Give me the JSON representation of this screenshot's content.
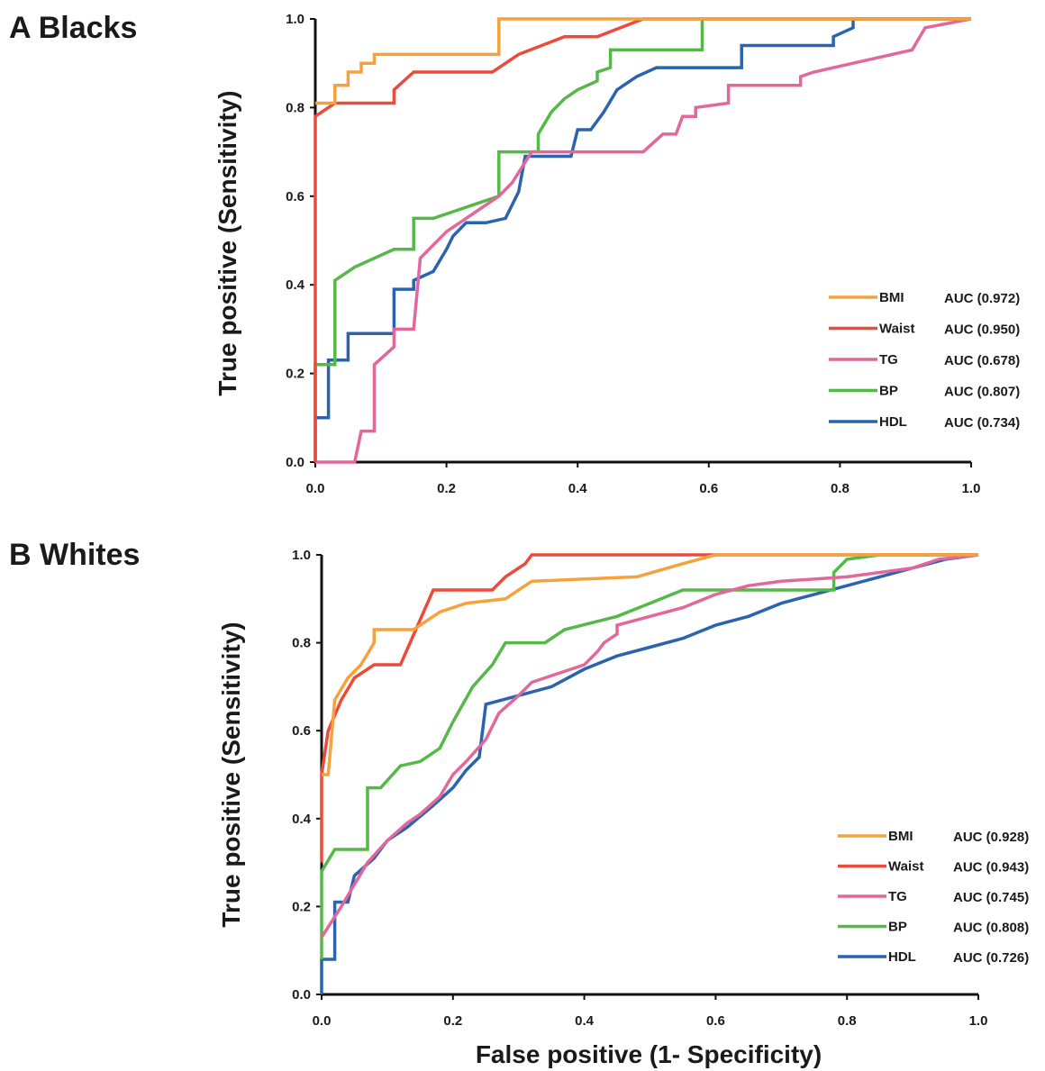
{
  "figure": {
    "xlabel": "False positive (1- Specificity)"
  },
  "chart_data": [
    {
      "type": "line",
      "panel": "A",
      "title": "A  Blacks",
      "ylabel": "True positive (Sensitivity)",
      "xlim": [
        0,
        1
      ],
      "ylim": [
        0,
        1
      ],
      "x_ticks": [
        "0.0",
        "0.2",
        "0.4",
        "0.6",
        "0.8",
        "1.0"
      ],
      "y_ticks": [
        "0.0",
        "0.2",
        "0.4",
        "0.6",
        "0.8",
        "1.0"
      ],
      "grid": false,
      "legend_position": "bottom-right",
      "series": [
        {
          "name": "BMI",
          "auc": "AUC (0.972)",
          "color": "#F5A23C",
          "points": [
            [
              0,
              0.81
            ],
            [
              0.03,
              0.81
            ],
            [
              0.03,
              0.85
            ],
            [
              0.05,
              0.85
            ],
            [
              0.05,
              0.88
            ],
            [
              0.07,
              0.88
            ],
            [
              0.07,
              0.9
            ],
            [
              0.09,
              0.9
            ],
            [
              0.09,
              0.92
            ],
            [
              0.28,
              0.92
            ],
            [
              0.28,
              1.0
            ],
            [
              1.0,
              1.0
            ]
          ]
        },
        {
          "name": "Waist",
          "auc": "AUC (0.950)",
          "color": "#EA4B3B",
          "points": [
            [
              0,
              0
            ],
            [
              0,
              0.78
            ],
            [
              0.03,
              0.81
            ],
            [
              0.12,
              0.81
            ],
            [
              0.12,
              0.84
            ],
            [
              0.15,
              0.88
            ],
            [
              0.27,
              0.88
            ],
            [
              0.31,
              0.92
            ],
            [
              0.38,
              0.96
            ],
            [
              0.43,
              0.96
            ],
            [
              0.5,
              1.0
            ],
            [
              1.0,
              1.0
            ]
          ]
        },
        {
          "name": "TG",
          "auc": "AUC (0.678)",
          "color": "#E2679A",
          "points": [
            [
              0,
              0
            ],
            [
              0.06,
              0
            ],
            [
              0.07,
              0.07
            ],
            [
              0.09,
              0.07
            ],
            [
              0.09,
              0.22
            ],
            [
              0.12,
              0.26
            ],
            [
              0.12,
              0.3
            ],
            [
              0.15,
              0.3
            ],
            [
              0.16,
              0.46
            ],
            [
              0.2,
              0.52
            ],
            [
              0.24,
              0.56
            ],
            [
              0.28,
              0.6
            ],
            [
              0.3,
              0.63
            ],
            [
              0.33,
              0.7
            ],
            [
              0.5,
              0.7
            ],
            [
              0.53,
              0.74
            ],
            [
              0.55,
              0.74
            ],
            [
              0.56,
              0.78
            ],
            [
              0.58,
              0.78
            ],
            [
              0.58,
              0.8
            ],
            [
              0.63,
              0.81
            ],
            [
              0.63,
              0.85
            ],
            [
              0.74,
              0.85
            ],
            [
              0.74,
              0.87
            ],
            [
              0.76,
              0.88
            ],
            [
              0.82,
              0.9
            ],
            [
              0.91,
              0.93
            ],
            [
              0.93,
              0.98
            ],
            [
              1.0,
              1.0
            ]
          ]
        },
        {
          "name": "BP",
          "auc": "AUC (0.807)",
          "color": "#55B848",
          "points": [
            [
              0,
              0.1
            ],
            [
              0,
              0.22
            ],
            [
              0.03,
              0.22
            ],
            [
              0.03,
              0.41
            ],
            [
              0.06,
              0.44
            ],
            [
              0.12,
              0.48
            ],
            [
              0.15,
              0.48
            ],
            [
              0.15,
              0.55
            ],
            [
              0.18,
              0.55
            ],
            [
              0.28,
              0.6
            ],
            [
              0.28,
              0.7
            ],
            [
              0.34,
              0.7
            ],
            [
              0.34,
              0.74
            ],
            [
              0.36,
              0.79
            ],
            [
              0.38,
              0.82
            ],
            [
              0.4,
              0.84
            ],
            [
              0.43,
              0.86
            ],
            [
              0.43,
              0.88
            ],
            [
              0.45,
              0.89
            ],
            [
              0.45,
              0.93
            ],
            [
              0.59,
              0.93
            ],
            [
              0.59,
              1.0
            ],
            [
              1.0,
              1.0
            ]
          ]
        },
        {
          "name": "HDL",
          "auc": "AUC (0.734)",
          "color": "#2B63AF",
          "points": [
            [
              0,
              0
            ],
            [
              0,
              0.1
            ],
            [
              0.02,
              0.1
            ],
            [
              0.02,
              0.23
            ],
            [
              0.05,
              0.23
            ],
            [
              0.05,
              0.29
            ],
            [
              0.12,
              0.29
            ],
            [
              0.12,
              0.39
            ],
            [
              0.15,
              0.39
            ],
            [
              0.15,
              0.41
            ],
            [
              0.18,
              0.43
            ],
            [
              0.2,
              0.48
            ],
            [
              0.21,
              0.51
            ],
            [
              0.23,
              0.54
            ],
            [
              0.26,
              0.54
            ],
            [
              0.29,
              0.55
            ],
            [
              0.31,
              0.61
            ],
            [
              0.32,
              0.69
            ],
            [
              0.39,
              0.69
            ],
            [
              0.4,
              0.75
            ],
            [
              0.42,
              0.75
            ],
            [
              0.44,
              0.79
            ],
            [
              0.46,
              0.84
            ],
            [
              0.49,
              0.87
            ],
            [
              0.52,
              0.89
            ],
            [
              0.65,
              0.89
            ],
            [
              0.65,
              0.94
            ],
            [
              0.79,
              0.94
            ],
            [
              0.79,
              0.96
            ],
            [
              0.82,
              0.98
            ],
            [
              0.82,
              1.0
            ],
            [
              1.0,
              1.0
            ]
          ]
        }
      ]
    },
    {
      "type": "line",
      "panel": "B",
      "title": "B  Whites",
      "ylabel": "True positive (Sensitivity)",
      "xlim": [
        0,
        1
      ],
      "ylim": [
        0,
        1
      ],
      "x_ticks": [
        "0.0",
        "0.2",
        "0.4",
        "0.6",
        "0.8",
        "1.0"
      ],
      "y_ticks": [
        "0.0",
        "0.2",
        "0.4",
        "0.6",
        "0.8",
        "1.0"
      ],
      "grid": false,
      "legend_position": "bottom-right",
      "series": [
        {
          "name": "BMI",
          "auc": "AUC (0.928)",
          "color": "#F5A23C",
          "points": [
            [
              0,
              0.5
            ],
            [
              0.01,
              0.5
            ],
            [
              0.02,
              0.67
            ],
            [
              0.04,
              0.72
            ],
            [
              0.06,
              0.75
            ],
            [
              0.08,
              0.8
            ],
            [
              0.08,
              0.83
            ],
            [
              0.14,
              0.83
            ],
            [
              0.18,
              0.87
            ],
            [
              0.22,
              0.89
            ],
            [
              0.28,
              0.9
            ],
            [
              0.3,
              0.92
            ],
            [
              0.32,
              0.94
            ],
            [
              0.48,
              0.95
            ],
            [
              0.55,
              0.98
            ],
            [
              0.6,
              1.0
            ],
            [
              1.0,
              1.0
            ]
          ]
        },
        {
          "name": "Waist",
          "auc": "AUC (0.943)",
          "color": "#EA4B3B",
          "points": [
            [
              0,
              0.3
            ],
            [
              0,
              0.5
            ],
            [
              0.01,
              0.6
            ],
            [
              0.03,
              0.67
            ],
            [
              0.05,
              0.72
            ],
            [
              0.08,
              0.75
            ],
            [
              0.12,
              0.75
            ],
            [
              0.17,
              0.92
            ],
            [
              0.26,
              0.92
            ],
            [
              0.28,
              0.95
            ],
            [
              0.31,
              0.98
            ],
            [
              0.32,
              1.0
            ],
            [
              1.0,
              1.0
            ]
          ]
        },
        {
          "name": "TG",
          "auc": "AUC (0.745)",
          "color": "#E2679A",
          "points": [
            [
              0,
              0.13
            ],
            [
              0.03,
              0.2
            ],
            [
              0.05,
              0.25
            ],
            [
              0.07,
              0.3
            ],
            [
              0.1,
              0.35
            ],
            [
              0.13,
              0.39
            ],
            [
              0.15,
              0.41
            ],
            [
              0.18,
              0.45
            ],
            [
              0.2,
              0.5
            ],
            [
              0.22,
              0.53
            ],
            [
              0.25,
              0.58
            ],
            [
              0.27,
              0.64
            ],
            [
              0.3,
              0.68
            ],
            [
              0.32,
              0.71
            ],
            [
              0.4,
              0.75
            ],
            [
              0.42,
              0.78
            ],
            [
              0.43,
              0.8
            ],
            [
              0.45,
              0.82
            ],
            [
              0.45,
              0.84
            ],
            [
              0.5,
              0.86
            ],
            [
              0.55,
              0.88
            ],
            [
              0.6,
              0.91
            ],
            [
              0.65,
              0.93
            ],
            [
              0.7,
              0.94
            ],
            [
              0.8,
              0.95
            ],
            [
              0.9,
              0.97
            ],
            [
              0.94,
              0.99
            ],
            [
              1.0,
              1.0
            ]
          ]
        },
        {
          "name": "BP",
          "auc": "AUC (0.808)",
          "color": "#55B848",
          "points": [
            [
              0,
              0.08
            ],
            [
              0,
              0.28
            ],
            [
              0.02,
              0.33
            ],
            [
              0.07,
              0.33
            ],
            [
              0.07,
              0.47
            ],
            [
              0.09,
              0.47
            ],
            [
              0.12,
              0.52
            ],
            [
              0.15,
              0.53
            ],
            [
              0.18,
              0.56
            ],
            [
              0.2,
              0.62
            ],
            [
              0.23,
              0.7
            ],
            [
              0.26,
              0.75
            ],
            [
              0.28,
              0.8
            ],
            [
              0.34,
              0.8
            ],
            [
              0.37,
              0.83
            ],
            [
              0.45,
              0.86
            ],
            [
              0.5,
              0.89
            ],
            [
              0.55,
              0.92
            ],
            [
              0.78,
              0.92
            ],
            [
              0.78,
              0.96
            ],
            [
              0.8,
              0.99
            ],
            [
              0.85,
              1.0
            ],
            [
              1.0,
              1.0
            ]
          ]
        },
        {
          "name": "HDL",
          "auc": "AUC (0.726)",
          "color": "#2B63AF",
          "points": [
            [
              0,
              0
            ],
            [
              0,
              0.08
            ],
            [
              0.02,
              0.08
            ],
            [
              0.02,
              0.21
            ],
            [
              0.04,
              0.21
            ],
            [
              0.05,
              0.27
            ],
            [
              0.08,
              0.31
            ],
            [
              0.1,
              0.35
            ],
            [
              0.13,
              0.38
            ],
            [
              0.17,
              0.43
            ],
            [
              0.2,
              0.47
            ],
            [
              0.22,
              0.51
            ],
            [
              0.24,
              0.54
            ],
            [
              0.25,
              0.66
            ],
            [
              0.3,
              0.68
            ],
            [
              0.35,
              0.7
            ],
            [
              0.4,
              0.74
            ],
            [
              0.45,
              0.77
            ],
            [
              0.5,
              0.79
            ],
            [
              0.55,
              0.81
            ],
            [
              0.6,
              0.84
            ],
            [
              0.65,
              0.86
            ],
            [
              0.7,
              0.89
            ],
            [
              0.75,
              0.91
            ],
            [
              0.8,
              0.93
            ],
            [
              0.85,
              0.95
            ],
            [
              0.9,
              0.97
            ],
            [
              0.95,
              0.99
            ],
            [
              1.0,
              1.0
            ]
          ]
        }
      ]
    }
  ]
}
